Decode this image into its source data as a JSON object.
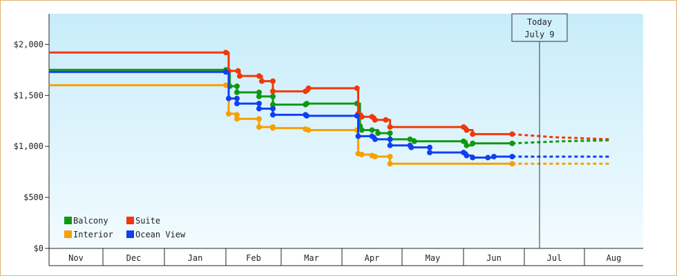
{
  "chart_data": {
    "type": "line",
    "step": true,
    "x_ticks": [
      "Nov",
      "Dec",
      "Jan",
      "Feb",
      "Mar",
      "Apr",
      "May",
      "Jun",
      "Jul",
      "Aug"
    ],
    "y_ticks": [
      "$0",
      "$500",
      "$1,000",
      "$1,500",
      "$2,000"
    ],
    "ylim": [
      0,
      2300
    ],
    "today_label": [
      "Today",
      "July 9"
    ],
    "colors": {
      "background_top": "#c8ecfa",
      "background_bottom": "#f2fbff"
    },
    "legend_placement": "bottom-left",
    "series": [
      {
        "name": "Balcony",
        "color": "#109810",
        "points": [
          [
            0.0,
            1750
          ],
          [
            3.0,
            1750
          ],
          [
            3.07,
            1590
          ],
          [
            3.2,
            1590
          ],
          [
            3.2,
            1530
          ],
          [
            3.6,
            1530
          ],
          [
            3.6,
            1490
          ],
          [
            3.85,
            1490
          ],
          [
            3.85,
            1410
          ],
          [
            4.4,
            1410
          ],
          [
            4.42,
            1420
          ],
          [
            5.25,
            1420
          ],
          [
            5.3,
            1200
          ],
          [
            5.33,
            1160
          ],
          [
            5.5,
            1160
          ],
          [
            5.6,
            1130
          ],
          [
            5.8,
            1130
          ],
          [
            5.8,
            1070
          ],
          [
            6.13,
            1070
          ],
          [
            6.2,
            1050
          ],
          [
            7.0,
            1050
          ],
          [
            7.05,
            1010
          ],
          [
            7.15,
            1030
          ],
          [
            7.8,
            1030
          ]
        ],
        "projection": [
          [
            7.8,
            1030
          ],
          [
            8.6,
            1050
          ],
          [
            9.42,
            1060
          ]
        ]
      },
      {
        "name": "Suite",
        "color": "#f03808",
        "points": [
          [
            0.0,
            1920
          ],
          [
            3.0,
            1920
          ],
          [
            3.05,
            1740
          ],
          [
            3.22,
            1740
          ],
          [
            3.25,
            1690
          ],
          [
            3.6,
            1690
          ],
          [
            3.65,
            1640
          ],
          [
            3.85,
            1640
          ],
          [
            3.85,
            1540
          ],
          [
            4.4,
            1540
          ],
          [
            4.45,
            1570
          ],
          [
            5.25,
            1570
          ],
          [
            5.27,
            1320
          ],
          [
            5.33,
            1290
          ],
          [
            5.5,
            1290
          ],
          [
            5.55,
            1260
          ],
          [
            5.73,
            1260
          ],
          [
            5.8,
            1190
          ],
          [
            7.0,
            1190
          ],
          [
            7.05,
            1160
          ],
          [
            7.15,
            1120
          ],
          [
            7.8,
            1120
          ]
        ],
        "projection": [
          [
            7.8,
            1120
          ],
          [
            8.5,
            1090
          ],
          [
            9.42,
            1070
          ]
        ]
      },
      {
        "name": "Interior",
        "color": "#f8a000",
        "points": [
          [
            0.0,
            1600
          ],
          [
            3.0,
            1600
          ],
          [
            3.05,
            1320
          ],
          [
            3.2,
            1310
          ],
          [
            3.2,
            1270
          ],
          [
            3.6,
            1270
          ],
          [
            3.6,
            1190
          ],
          [
            3.85,
            1190
          ],
          [
            3.85,
            1180
          ],
          [
            4.4,
            1170
          ],
          [
            4.45,
            1160
          ],
          [
            5.25,
            1160
          ],
          [
            5.27,
            930
          ],
          [
            5.33,
            920
          ],
          [
            5.5,
            910
          ],
          [
            5.55,
            900
          ],
          [
            5.8,
            900
          ],
          [
            5.8,
            830
          ],
          [
            7.8,
            830
          ]
        ],
        "projection": [
          [
            7.8,
            830
          ],
          [
            9.42,
            830
          ]
        ]
      },
      {
        "name": "Ocean View",
        "color": "#1040f0",
        "points": [
          [
            0.0,
            1730
          ],
          [
            3.0,
            1730
          ],
          [
            3.05,
            1470
          ],
          [
            3.2,
            1470
          ],
          [
            3.2,
            1420
          ],
          [
            3.6,
            1420
          ],
          [
            3.6,
            1370
          ],
          [
            3.85,
            1370
          ],
          [
            3.85,
            1310
          ],
          [
            4.4,
            1310
          ],
          [
            4.42,
            1300
          ],
          [
            5.25,
            1300
          ],
          [
            5.27,
            1100
          ],
          [
            5.5,
            1100
          ],
          [
            5.55,
            1070
          ],
          [
            5.8,
            1070
          ],
          [
            5.8,
            1010
          ],
          [
            6.13,
            1010
          ],
          [
            6.15,
            990
          ],
          [
            6.45,
            990
          ],
          [
            6.45,
            940
          ],
          [
            7.0,
            940
          ],
          [
            7.05,
            910
          ],
          [
            7.15,
            890
          ],
          [
            7.4,
            890
          ],
          [
            7.5,
            900
          ],
          [
            7.8,
            900
          ]
        ],
        "projection": [
          [
            7.8,
            900
          ],
          [
            9.42,
            900
          ]
        ]
      }
    ]
  }
}
